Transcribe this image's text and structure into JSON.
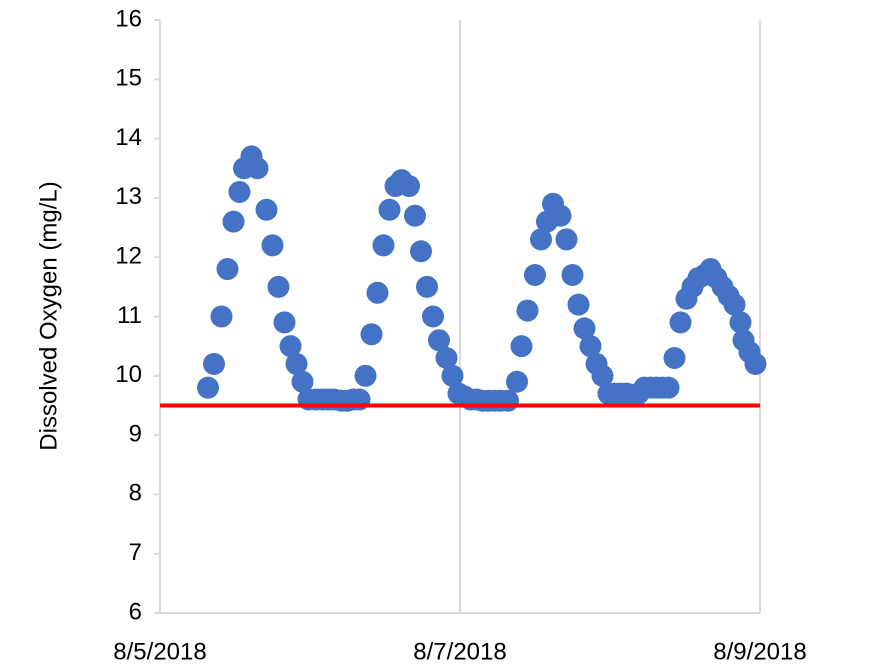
{
  "chart_data": {
    "type": "scatter",
    "y_label": "Dissolved Oxygen (mg/L)",
    "x": [
      43317.32,
      43317.36,
      43317.41,
      43317.45,
      43317.49,
      43317.53,
      43317.56,
      43317.61,
      43317.65,
      43317.71,
      43317.75,
      43317.79,
      43317.83,
      43317.87,
      43317.91,
      43317.95,
      43317.99,
      43318.04,
      43318.08,
      43318.12,
      43318.16,
      43318.21,
      43318.25,
      43318.29,
      43318.33,
      43318.37,
      43318.41,
      43318.45,
      43318.49,
      43318.53,
      43318.57,
      43318.61,
      43318.66,
      43318.7,
      43318.74,
      43318.78,
      43318.82,
      43318.86,
      43318.91,
      43318.95,
      43318.99,
      43319.03,
      43319.07,
      43319.11,
      43319.15,
      43319.19,
      43319.23,
      43319.27,
      43319.32,
      43319.38,
      43319.41,
      43319.45,
      43319.5,
      43319.54,
      43319.58,
      43319.62,
      43319.67,
      43319.71,
      43319.75,
      43319.79,
      43319.83,
      43319.87,
      43319.91,
      43319.95,
      43319.99,
      43320.03,
      43320.07,
      43320.11,
      43320.15,
      43320.19,
      43320.23,
      43320.27,
      43320.31,
      43320.35,
      43320.39,
      43320.43,
      43320.47,
      43320.51,
      43320.55,
      43320.59,
      43320.63,
      43320.67,
      43320.71,
      43320.75,
      43320.79,
      43320.83,
      43320.87,
      43320.89,
      43320.93,
      43320.97
    ],
    "series": [
      {
        "color": "#4472c4",
        "values": [
          9.8,
          10.2,
          11.0,
          11.8,
          12.6,
          13.1,
          13.5,
          13.7,
          13.5,
          12.8,
          12.2,
          11.5,
          10.9,
          10.5,
          10.2,
          9.9,
          9.6,
          9.6,
          9.6,
          9.6,
          9.6,
          9.58,
          9.58,
          9.6,
          9.6,
          10.0,
          10.7,
          11.4,
          12.2,
          12.8,
          13.2,
          13.3,
          13.2,
          12.7,
          12.1,
          11.5,
          11.0,
          10.6,
          10.3,
          10.0,
          9.7,
          9.65,
          9.6,
          9.6,
          9.58,
          9.58,
          9.58,
          9.58,
          9.58,
          9.9,
          10.5,
          11.1,
          11.7,
          12.3,
          12.6,
          12.9,
          12.7,
          12.3,
          11.7,
          11.2,
          10.8,
          10.5,
          10.2,
          10.0,
          9.7,
          9.7,
          9.7,
          9.7,
          9.65,
          9.7,
          9.8,
          9.8,
          9.8,
          9.8,
          9.8,
          10.3,
          10.9,
          11.3,
          11.5,
          11.65,
          11.7,
          11.8,
          11.65,
          11.5,
          11.35,
          11.2,
          10.9,
          10.6,
          10.4,
          10.2
        ]
      }
    ],
    "reference_line": {
      "value": 9.5,
      "color": "#ff0000"
    },
    "xlim": [
      43317,
      43321
    ],
    "xticks": [
      {
        "value": 43317,
        "label": "8/5/2018"
      },
      {
        "value": 43319,
        "label": "8/7/2018"
      },
      {
        "value": 43321,
        "label": "8/9/2018"
      }
    ],
    "ylim": [
      6,
      16
    ],
    "yticks": [
      6,
      7,
      8,
      9,
      10,
      11,
      12,
      13,
      14,
      15,
      16
    ],
    "grid": "x"
  }
}
